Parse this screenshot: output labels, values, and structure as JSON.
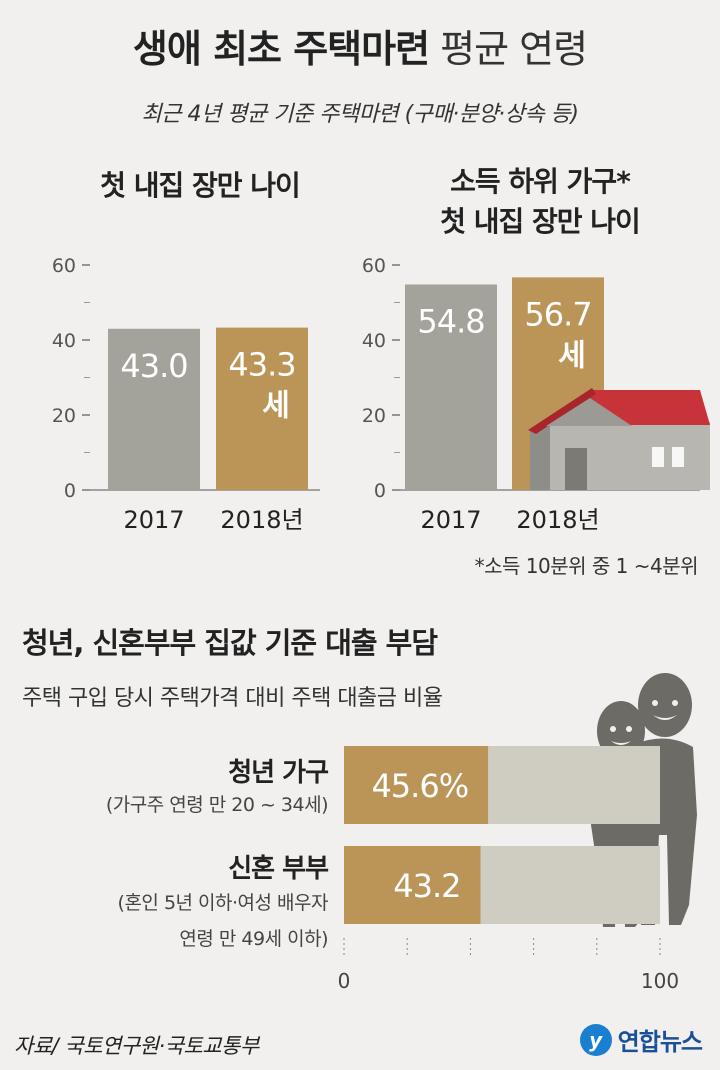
{
  "header": {
    "title_bold": "생애 최초 주택마련",
    "title_light": "평균 연령",
    "subtitle": "최근 4년 평균 기준 주택마련 (구매·분양·상속 등)"
  },
  "colors": {
    "gray_bar": "#a3a39b",
    "gold_bar": "#bb9557",
    "bar_track": "#cfcdc2",
    "background": "#f1f0ee"
  },
  "chart_data": [
    {
      "type": "bar",
      "title": "첫 내집 장만 나이",
      "categories": [
        "2017",
        "2018년"
      ],
      "values": [
        43.0,
        43.3
      ],
      "value_labels": [
        "43.0",
        "43.3"
      ],
      "unit_label": "세",
      "yticks": [
        "0",
        "20",
        "40",
        "60"
      ],
      "ylim": [
        0,
        60
      ]
    },
    {
      "type": "bar",
      "title_line1": "소득 하위 가구*",
      "title_line2": "첫 내집 장만 나이",
      "categories": [
        "2017",
        "2018년"
      ],
      "values": [
        54.8,
        56.7
      ],
      "value_labels": [
        "54.8",
        "56.7"
      ],
      "unit_label": "세",
      "yticks": [
        "0",
        "20",
        "40",
        "60"
      ],
      "ylim": [
        0,
        60
      ],
      "footnote": "*소득 10분위 중 1 ~4분위"
    },
    {
      "type": "bar",
      "orientation": "horizontal",
      "title": "청년, 신혼부부 집값 기준 대출 부담",
      "subtitle": "주택 구입 당시 주택가격 대비 주택 대출금 비율",
      "categories": [
        "청년 가구",
        "신혼 부부"
      ],
      "category_notes": [
        "(가구주 연령 만 20 ~ 34세)",
        "(혼인 5년 이하·여성 배우자",
        "연령 만 49세 이하)"
      ],
      "values": [
        45.6,
        43.2
      ],
      "value_labels": [
        "45.6%",
        "43.2"
      ],
      "xticks": [
        "0",
        "100"
      ],
      "xlim": [
        0,
        100
      ]
    }
  ],
  "footer": {
    "source": "자료/ 국토연구원·국토교통부",
    "logo_text": "연합뉴스",
    "logo_mark": "y"
  }
}
